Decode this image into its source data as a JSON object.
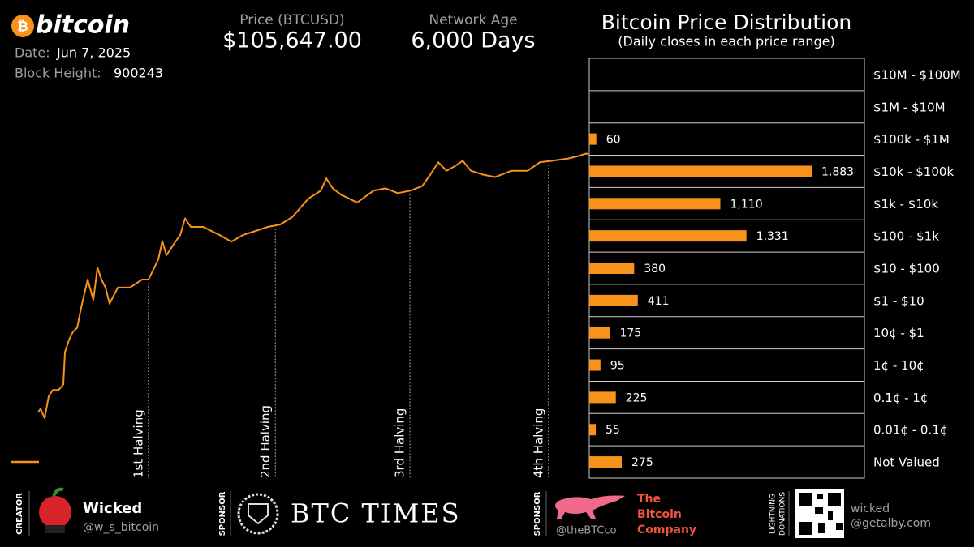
{
  "header": {
    "logo_symbol": "₿",
    "logo": "bitcoin",
    "date_label": "Date:",
    "date": "Jun 7, 2025",
    "block_label": "Block Height:",
    "block": "900243",
    "price_label": "Price (BTCUSD)",
    "price": "$105,647.00",
    "age_label": "Network Age",
    "age": "6,000 Days"
  },
  "chart_data": [
    {
      "type": "line",
      "log": true,
      "color": "#f7931a",
      "xlim": [
        0,
        6000
      ],
      "ylim": [
        0.0001,
        100000000
      ],
      "x": [
        279,
        304,
        346,
        388,
        430,
        490,
        540,
        557,
        599,
        641,
        684,
        726,
        793,
        852,
        895,
        937,
        979,
        1021,
        1106,
        1232,
        1359,
        1426,
        1528,
        1570,
        1612,
        1696,
        1756,
        1806,
        1865,
        1992,
        2161,
        2287,
        2414,
        2540,
        2667,
        2794,
        2920,
        3089,
        3216,
        3275,
        3342,
        3427,
        3595,
        3764,
        3891,
        4017,
        4144,
        4271,
        4355,
        4439,
        4524,
        4608,
        4693,
        4777,
        4904,
        5030,
        5199,
        5368,
        5494,
        5621,
        5790,
        5891,
        5976,
        6000
      ],
      "values": [
        0.0011,
        0.0014,
        0.00071,
        0.0034,
        0.0053,
        0.0053,
        0.0079,
        0.079,
        0.19,
        0.34,
        0.45,
        1.9,
        14,
        3.3,
        33,
        14,
        7.9,
        2.5,
        7.9,
        7.9,
        14,
        14,
        60,
        220,
        79,
        190,
        340,
        1100,
        600,
        600,
        340,
        210,
        340,
        450,
        600,
        710,
        1200,
        4500,
        7900,
        19000,
        9400,
        6000,
        3400,
        7900,
        9400,
        6700,
        7900,
        11000,
        25000,
        60000,
        33000,
        45000,
        67000,
        33000,
        25000,
        21000,
        33000,
        33000,
        60000,
        67000,
        79000,
        94000,
        112000,
        105647
      ],
      "annotations": [
        {
          "x": 1425,
          "label": "1st Halving"
        },
        {
          "x": 2745,
          "label": "2nd Halving"
        },
        {
          "x": 4144,
          "label": "3rd Halving"
        },
        {
          "x": 5585,
          "label": "4th Halving"
        }
      ]
    },
    {
      "type": "hbar",
      "title": "Bitcoin Price Distribution",
      "subtitle": "(Daily closes in each price range)",
      "color": "#f7931a",
      "categories": [
        "$10M - $100M",
        "$1M - $10M",
        "$100k - $1M",
        "$10k - $100k",
        "$1k - $10k",
        "$100 - $1k",
        "$10 - $100",
        "$1 - $10",
        "10¢ - $1",
        "1¢ - 10¢",
        "0.1¢ - 1¢",
        "0.01¢ - 0.1¢",
        "Not Valued"
      ],
      "values": [
        null,
        null,
        60,
        1883,
        1110,
        1331,
        380,
        411,
        175,
        95,
        225,
        55,
        275
      ],
      "value_labels": [
        null,
        null,
        "60",
        "1,883",
        "1,110",
        "1,331",
        "380",
        "411",
        "175",
        "95",
        "225",
        "55",
        "275"
      ]
    }
  ],
  "footer": {
    "creator_tag": "CREATOR",
    "creator_name": "Wicked",
    "creator_handle": "@w_s_bitcoin",
    "sponsor1_tag": "SPONSOR",
    "sponsor1_name": "BTC TIMES",
    "sponsor2_tag": "SPONSOR",
    "sponsor2_handle": "@theBTCco",
    "sponsor2_name": [
      "The",
      "Bitcoin",
      "Company"
    ],
    "donate_tag": [
      "LIGHTNING",
      "DONATIONS"
    ],
    "donate_user": "wicked",
    "donate_domain": "@getalby.com"
  }
}
